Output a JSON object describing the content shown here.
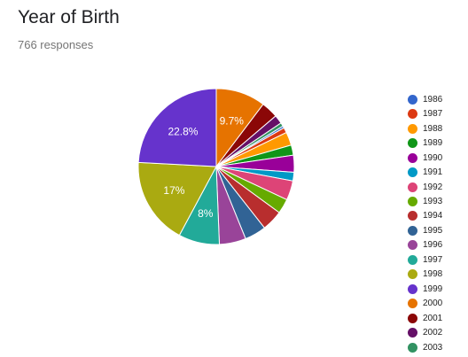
{
  "question": {
    "title": "Year of Birth",
    "responses_label": "766 responses"
  },
  "chart_data": {
    "type": "pie",
    "title": "Year of Birth",
    "categories": [
      "1986",
      "1987",
      "1988",
      "1989",
      "1990",
      "1991",
      "1992",
      "1993",
      "1994",
      "1995",
      "1996",
      "1997",
      "1998",
      "1999",
      "2000",
      "2001",
      "2002",
      "2003"
    ],
    "values": [
      0.4,
      1.0,
      2.6,
      2.0,
      3.3,
      1.7,
      3.8,
      2.9,
      4.1,
      4.2,
      5.2,
      8.0,
      17.0,
      22.8,
      9.7,
      3.3,
      1.7,
      0.7
    ],
    "value_unit": "%",
    "data_labels": [
      "",
      "",
      "",
      "",
      "",
      "",
      "",
      "",
      "",
      "",
      "",
      "8%",
      "17%",
      "22.8%",
      "9.7%",
      "",
      "",
      ""
    ],
    "colors": [
      "#3366cc",
      "#dc3912",
      "#ff9900",
      "#109618",
      "#990099",
      "#0099c6",
      "#dd4477",
      "#66aa00",
      "#b82e2e",
      "#316395",
      "#994499",
      "#22aa99",
      "#aaaa11",
      "#6633cc",
      "#e67300",
      "#8b0707",
      "#651067",
      "#329262"
    ],
    "legend_position": "right"
  }
}
